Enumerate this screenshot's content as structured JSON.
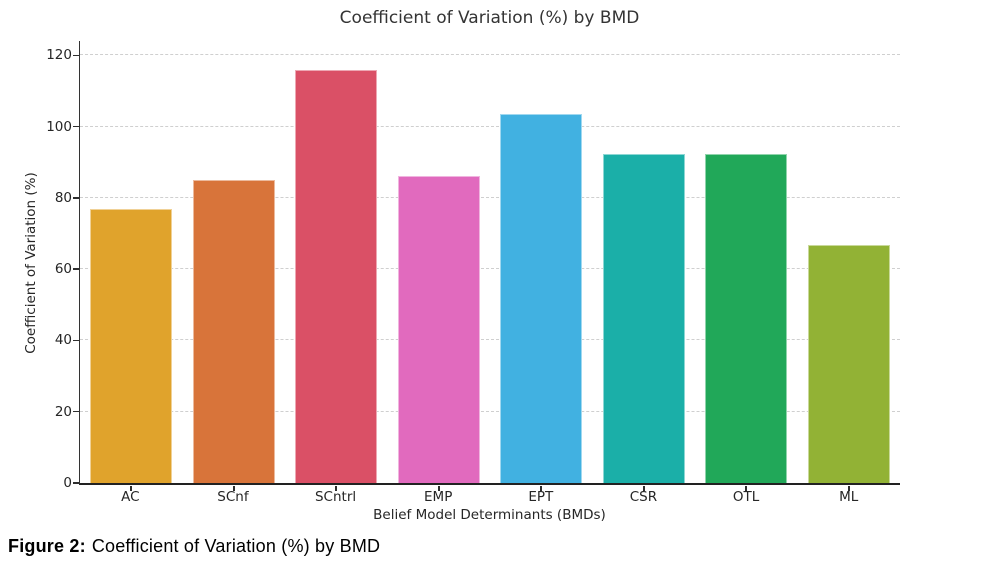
{
  "caption": {
    "label": "Figure 2:",
    "text": "Coefficient of Variation (%) by BMD"
  },
  "chart_data": {
    "type": "bar",
    "title": "Coefficient of Variation (%) by BMD",
    "xlabel": "Belief Model Determinants (BMDs)",
    "ylabel": "Coefficient of Variation (%)",
    "categories": [
      "AC",
      "SCnf",
      "SCntrl",
      "EMP",
      "EPT",
      "CSR",
      "OTL",
      "ML"
    ],
    "values": [
      77.0,
      85.0,
      115.9,
      86.2,
      103.5,
      92.4,
      92.4,
      66.8
    ],
    "colors": [
      "#E0A32C",
      "#D8743A",
      "#DA5066",
      "#E16ABE",
      "#41B1E1",
      "#1BAFA8",
      "#21A859",
      "#92B235"
    ],
    "ylim": [
      0,
      124
    ],
    "yticks": [
      0,
      20,
      40,
      60,
      80,
      100,
      120
    ],
    "grid": "horizontal-dashed",
    "legend": "none",
    "bar_edge_color": "rgba(255,255,255,0.5)"
  }
}
